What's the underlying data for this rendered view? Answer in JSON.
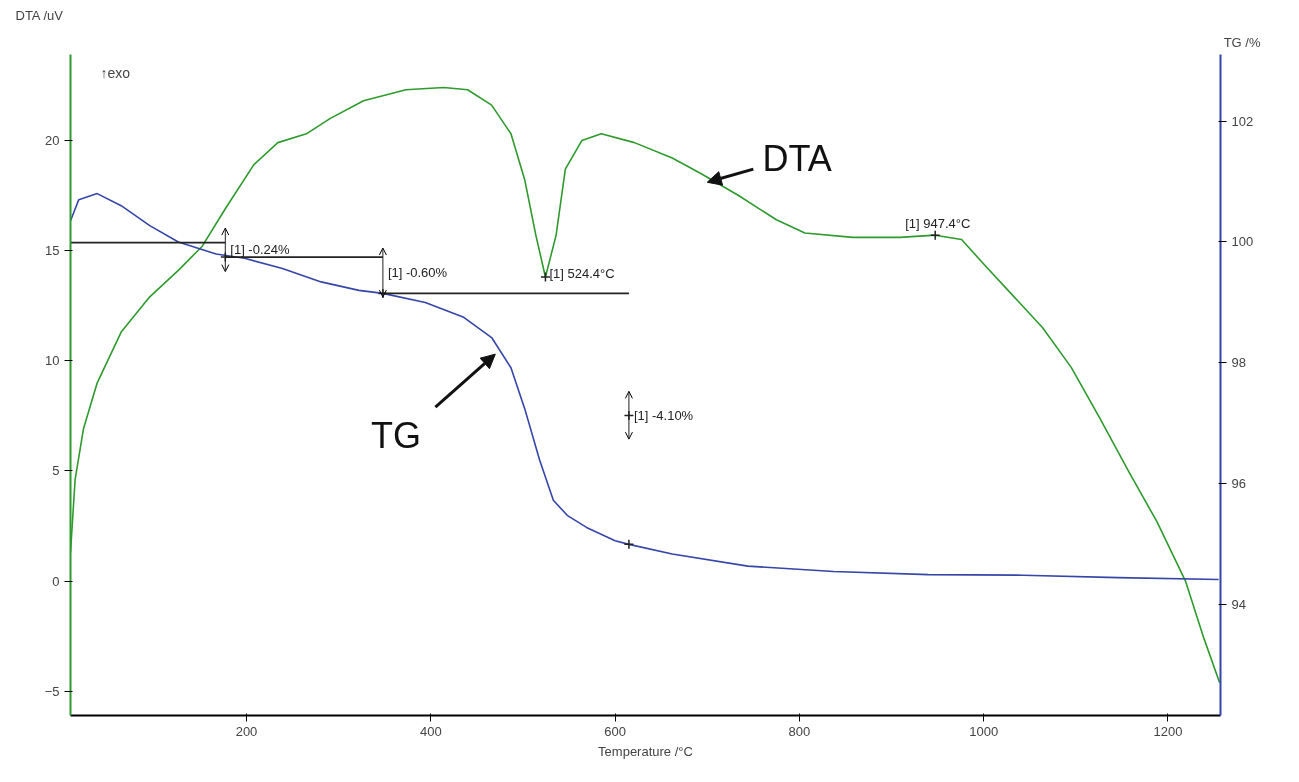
{
  "chart_data": {
    "type": "line",
    "xlabel": "Temperature /°C",
    "ylabel": "DTA /uV",
    "y2label": "TG /%",
    "xlim": [
      9,
      1257
    ],
    "xticks": [
      200,
      400,
      600,
      800,
      1000,
      1200
    ],
    "ylim": [
      -6.1,
      23.9
    ],
    "yticks": [
      -5,
      0,
      5,
      10,
      15,
      20
    ],
    "y2lim": [
      92.17,
      103.1
    ],
    "y2ticks": [
      94,
      96,
      98,
      100,
      102
    ],
    "grid": false,
    "marker": "none",
    "line_style": "solid",
    "series": [
      {
        "name": "DTA",
        "color": "#2e9a2e",
        "x": [
          9,
          14,
          23,
          38,
          64,
          95,
          126,
          152,
          177,
          208,
          234,
          265,
          291,
          327,
          373,
          414,
          440,
          466,
          487,
          502,
          514,
          524.4,
          536,
          546,
          564,
          585,
          621,
          662,
          693,
          734,
          775,
          806,
          858,
          909,
          947.4,
          976,
          1002,
          1033,
          1064,
          1095,
          1126,
          1157,
          1188,
          1219,
          1239,
          1256
        ],
        "values": [
          1.3,
          4.6,
          6.9,
          9.0,
          11.3,
          12.9,
          14.1,
          15.2,
          16.9,
          18.9,
          19.9,
          20.3,
          21.0,
          21.8,
          22.3,
          22.4,
          22.3,
          21.6,
          20.3,
          18.2,
          15.7,
          13.8,
          15.7,
          18.7,
          20.0,
          20.3,
          19.9,
          19.2,
          18.5,
          17.5,
          16.4,
          15.8,
          15.6,
          15.6,
          15.7,
          15.5,
          14.3,
          12.9,
          11.5,
          9.7,
          7.4,
          5.0,
          2.7,
          0.0,
          -2.6,
          -4.6
        ]
      },
      {
        "name": "TG",
        "color": "#3545a8",
        "axis": "y2",
        "x": [
          9,
          18,
          38,
          64,
          95,
          126,
          167,
          198,
          239,
          281,
          322,
          348,
          394,
          435,
          466,
          487,
          502,
          518,
          533,
          548,
          569,
          600,
          615,
          662,
          744,
          837,
          940,
          1043,
          1146,
          1255
        ],
        "values": [
          100.35,
          100.7,
          100.8,
          100.6,
          100.27,
          100.0,
          99.8,
          99.73,
          99.56,
          99.34,
          99.2,
          99.15,
          99.0,
          98.76,
          98.42,
          97.92,
          97.24,
          96.4,
          95.73,
          95.48,
          95.28,
          95.06,
          95.0,
          94.84,
          94.64,
          94.55,
          94.5,
          94.49,
          94.45,
          94.42
        ]
      },
      {
        "color": "#222222",
        "axis": "y2",
        "x": [
          9,
          177
        ],
        "values": [
          99.99,
          99.99
        ]
      },
      {
        "color": "#222222",
        "axis": "y2",
        "x": [
          177,
          348
        ],
        "values": [
          99.75,
          99.75
        ]
      },
      {
        "color": "#222222",
        "axis": "y2",
        "x": [
          348,
          615
        ],
        "values": [
          99.15,
          99.15
        ]
      },
      {
        "type": "scatter",
        "marker": "cross",
        "color": "#222222",
        "x": [
          524.4,
          947.4
        ],
        "values": [
          13.8,
          15.7
        ],
        "value_labels": [
          "[1] 524.4°C",
          "[1] 947.4°C"
        ]
      },
      {
        "type": "scatter",
        "marker": "cross",
        "color": "#222222",
        "axis": "y2",
        "x": [
          177,
          348,
          615
        ],
        "values": [
          99.75,
          99.15,
          95.0
        ],
        "errors": [
          [
            99.51,
            100.23
          ],
          [
            99.09,
            99.9
          ],
          null
        ],
        "value_labels": [
          "[1] -0.24%",
          "[1] -0.60%",
          null
        ]
      },
      {
        "type": "scatter",
        "marker": "cross",
        "color": "#222222",
        "axis": "y2",
        "x": [
          615
        ],
        "values": [
          97.13
        ],
        "errors": [
          [
            96.74,
            97.53
          ]
        ],
        "value_labels": [
          "[1] -4.10%"
        ]
      }
    ],
    "annotations": [
      "↑exo"
    ]
  }
}
